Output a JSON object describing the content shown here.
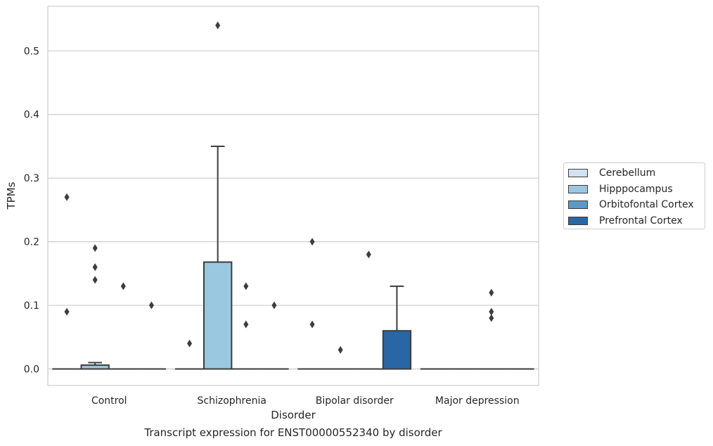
{
  "chart_data": {
    "type": "box",
    "categories": [
      "Control",
      "Schizophrenia",
      "Bipolar disorder",
      "Major depression"
    ],
    "xlabel": "Disorder",
    "ylabel": "TPMs",
    "caption": "Transcript expression for ENST00000552340 by disorder",
    "ylim": [
      -0.026,
      0.57
    ],
    "yticks": [
      "0.0",
      "0.1",
      "0.2",
      "0.3",
      "0.4",
      "0.5"
    ],
    "grid": true,
    "legend_position": "right",
    "series": [
      {
        "name": "Cerebellum",
        "color": "#d1e2f2",
        "boxes": [
          {
            "q1": 0,
            "median": 0,
            "q3": 0,
            "whislo": 0,
            "whishi": 0,
            "fliers": [
              0.27,
              0.09
            ]
          },
          {
            "q1": 0,
            "median": 0,
            "q3": 0,
            "whislo": 0,
            "whishi": 0,
            "fliers": [
              0.04
            ]
          },
          {
            "q1": 0,
            "median": 0,
            "q3": 0,
            "whislo": 0,
            "whishi": 0,
            "fliers": [
              0.2,
              0.07
            ]
          },
          {
            "q1": 0,
            "median": 0,
            "q3": 0,
            "whislo": 0,
            "whishi": 0,
            "fliers": []
          }
        ]
      },
      {
        "name": "Hipppocampus",
        "color": "#9ac8e0",
        "boxes": [
          {
            "q1": 0,
            "median": 0,
            "q3": 0.006,
            "whislo": 0,
            "whishi": 0.01,
            "fliers": [
              0.19,
              0.16,
              0.14
            ]
          },
          {
            "q1": 0,
            "median": 0,
            "q3": 0.168,
            "whislo": 0,
            "whishi": 0.35,
            "fliers": [
              0.54
            ]
          },
          {
            "q1": 0,
            "median": 0,
            "q3": 0,
            "whislo": 0,
            "whishi": 0,
            "fliers": [
              0.03
            ]
          },
          {
            "q1": 0,
            "median": 0,
            "q3": 0,
            "whislo": 0,
            "whishi": 0,
            "fliers": []
          }
        ]
      },
      {
        "name": "Orbitofontal Cortex",
        "color": "#5a9ac8",
        "boxes": [
          {
            "q1": 0,
            "median": 0,
            "q3": 0,
            "whislo": 0,
            "whishi": 0,
            "fliers": [
              0.13
            ]
          },
          {
            "q1": 0,
            "median": 0,
            "q3": 0,
            "whislo": 0,
            "whishi": 0,
            "fliers": [
              0.13,
              0.07
            ]
          },
          {
            "q1": 0,
            "median": 0,
            "q3": 0,
            "whislo": 0,
            "whishi": 0,
            "fliers": [
              0.18
            ]
          },
          {
            "q1": 0,
            "median": 0,
            "q3": 0,
            "whislo": 0,
            "whishi": 0,
            "fliers": [
              0.12,
              0.09,
              0.08
            ]
          }
        ]
      },
      {
        "name": "Prefrontal Cortex",
        "color": "#2866a6",
        "boxes": [
          {
            "q1": 0,
            "median": 0,
            "q3": 0,
            "whislo": 0,
            "whishi": 0,
            "fliers": [
              0.1
            ]
          },
          {
            "q1": 0,
            "median": 0,
            "q3": 0,
            "whislo": 0,
            "whishi": 0,
            "fliers": [
              0.1
            ]
          },
          {
            "q1": 0,
            "median": 0,
            "q3": 0.06,
            "whislo": 0,
            "whishi": 0.13,
            "fliers": []
          },
          {
            "q1": 0,
            "median": 0,
            "q3": 0,
            "whislo": 0,
            "whishi": 0,
            "fliers": []
          }
        ]
      }
    ]
  }
}
